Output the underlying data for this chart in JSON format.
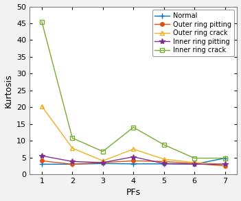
{
  "x": [
    1,
    2,
    3,
    4,
    5,
    6,
    7
  ],
  "series": [
    {
      "label": "Normal",
      "color": "#0072BD",
      "marker": "+",
      "markersize": 6,
      "linewidth": 1.0,
      "values": [
        3.0,
        3.0,
        3.2,
        3.1,
        3.1,
        3.0,
        4.8
      ]
    },
    {
      "label": "Outer ring pitting",
      "color": "#D95319",
      "marker": "o",
      "markersize": 4,
      "linewidth": 1.0,
      "values": [
        4.0,
        3.0,
        3.5,
        4.0,
        3.8,
        3.2,
        2.5
      ]
    },
    {
      "label": "Outer ring crack",
      "color": "#EDB120",
      "marker": "^",
      "markersize": 5,
      "linewidth": 1.0,
      "values": [
        20.3,
        7.8,
        4.0,
        7.5,
        4.5,
        3.5,
        3.0
      ]
    },
    {
      "label": "Inner ring pitting",
      "color": "#7E2F8E",
      "marker": "*",
      "markersize": 6,
      "linewidth": 1.0,
      "values": [
        5.5,
        3.8,
        3.5,
        5.2,
        3.2,
        3.0,
        3.0
      ]
    },
    {
      "label": "Inner ring crack",
      "color": "#77AC30",
      "marker": "s",
      "markersize": 4,
      "linewidth": 1.0,
      "values": [
        45.5,
        10.8,
        6.8,
        14.0,
        8.8,
        4.8,
        4.8
      ]
    }
  ],
  "xlabel": "PFs",
  "ylabel": "Kurtosis",
  "xlim": [
    0.6,
    7.4
  ],
  "ylim": [
    0,
    50
  ],
  "yticks": [
    0,
    5,
    10,
    15,
    20,
    25,
    30,
    35,
    40,
    45,
    50
  ],
  "xticks": [
    1,
    2,
    3,
    4,
    5,
    6,
    7
  ],
  "legend_loc": "upper right",
  "bg_color": "#F0F0F0",
  "figsize": [
    3.51,
    2.93
  ],
  "dpi": 100,
  "xlabel_fontsize": 9,
  "ylabel_fontsize": 9,
  "tick_fontsize": 8,
  "legend_fontsize": 7
}
